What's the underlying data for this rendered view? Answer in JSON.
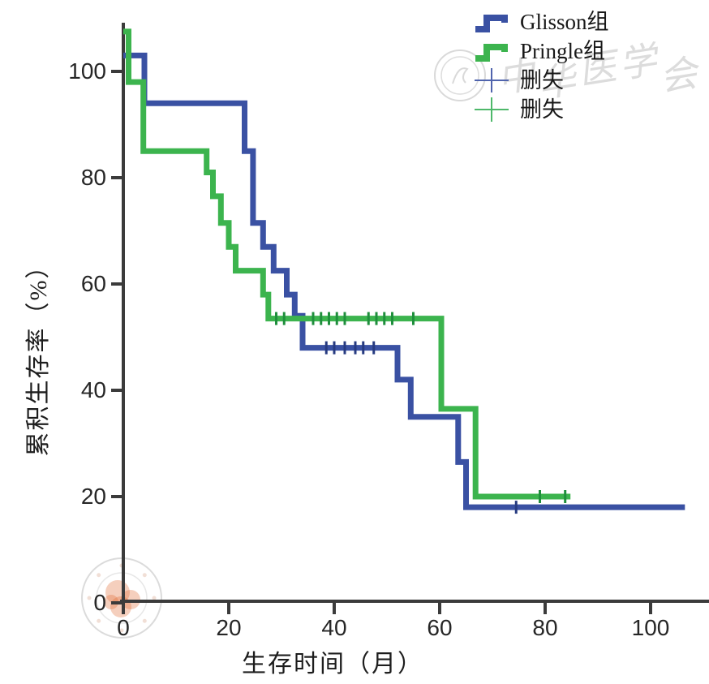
{
  "figure": {
    "background": "#ffffff",
    "axis_color": "#3b3b3b",
    "tick_label_color": "#262626"
  },
  "axes": {
    "x": {
      "label": "生存时间（月）",
      "ticks": [
        0,
        20,
        40,
        60,
        80,
        100
      ]
    },
    "y": {
      "label": "累积生存率（%）",
      "ticks": [
        0,
        20,
        40,
        60,
        80,
        100
      ]
    }
  },
  "legend": {
    "position": "top-right",
    "items": [
      {
        "label": "Glisson组",
        "type": "step-line",
        "color": "#3a51a3"
      },
      {
        "label": "Pringle组",
        "type": "step-line",
        "color": "#3cb44e"
      },
      {
        "label": "删失",
        "type": "censor-plus",
        "color": "#5064ad"
      },
      {
        "label": "删失",
        "type": "censor-plus",
        "color": "#4eb86a"
      }
    ]
  },
  "watermarks": {
    "top_right": {
      "type": "journal-watermark",
      "text": "中华医学会",
      "logo": "double-circle-seal",
      "color": "#909090"
    },
    "bottom_left": {
      "type": "round-seal-stamp",
      "ring_color": "#bdbdbd",
      "center_color": "#e06a33"
    }
  },
  "chart_data": {
    "type": "line",
    "subtype": "kaplan-meier-step",
    "title": "",
    "xlabel": "生存时间（月）",
    "ylabel": "累积生存率（%）",
    "xlim": [
      0,
      111
    ],
    "ylim": [
      0,
      109
    ],
    "grid": false,
    "legend_position": "top-right",
    "series": [
      {
        "name": "Glisson组",
        "color": "#3a51a3",
        "censor_color": "#263a80",
        "steps": [
          [
            0,
            103
          ],
          [
            4,
            103
          ],
          [
            4,
            94
          ],
          [
            23,
            94
          ],
          [
            23,
            85
          ],
          [
            24.6,
            85
          ],
          [
            24.6,
            71.5
          ],
          [
            26.5,
            71.5
          ],
          [
            26.5,
            67
          ],
          [
            28.5,
            67
          ],
          [
            28.5,
            62.5
          ],
          [
            31,
            62.5
          ],
          [
            31,
            58
          ],
          [
            32.5,
            58
          ],
          [
            32.5,
            54
          ],
          [
            34,
            54
          ],
          [
            34,
            48
          ],
          [
            52,
            48
          ],
          [
            52,
            42
          ],
          [
            54.5,
            42
          ],
          [
            54.5,
            35
          ],
          [
            63.5,
            35
          ],
          [
            63.5,
            26.5
          ],
          [
            65,
            26.5
          ],
          [
            65,
            18
          ],
          [
            106.5,
            18
          ]
        ],
        "censors": [
          [
            38.5,
            48
          ],
          [
            40,
            48
          ],
          [
            42,
            48
          ],
          [
            44,
            48
          ],
          [
            45.5,
            48
          ],
          [
            47.5,
            48
          ],
          [
            74.5,
            18
          ]
        ]
      },
      {
        "name": "Pringle组",
        "color": "#3cb44e",
        "censor_color": "#1f8f3c",
        "steps": [
          [
            0,
            107.5
          ],
          [
            1,
            107.5
          ],
          [
            1,
            98
          ],
          [
            3.8,
            98
          ],
          [
            3.8,
            85
          ],
          [
            15.8,
            85
          ],
          [
            15.8,
            81
          ],
          [
            17,
            81
          ],
          [
            17,
            76.5
          ],
          [
            18.5,
            76.5
          ],
          [
            18.5,
            71.5
          ],
          [
            20,
            71.5
          ],
          [
            20,
            67
          ],
          [
            21.3,
            67
          ],
          [
            21.3,
            62.5
          ],
          [
            26.5,
            62.5
          ],
          [
            26.5,
            58
          ],
          [
            27.5,
            58
          ],
          [
            27.5,
            53.5
          ],
          [
            60.3,
            53.5
          ],
          [
            60.3,
            36.5
          ],
          [
            66.8,
            36.5
          ],
          [
            66.8,
            20
          ],
          [
            84.8,
            20
          ]
        ],
        "censors": [
          [
            29,
            53.5
          ],
          [
            30.5,
            53.5
          ],
          [
            36,
            53.5
          ],
          [
            37.5,
            53.5
          ],
          [
            39,
            53.5
          ],
          [
            40.5,
            53.5
          ],
          [
            42,
            53.5
          ],
          [
            46.5,
            53.5
          ],
          [
            48,
            53.5
          ],
          [
            49.5,
            53.5
          ],
          [
            51,
            53.5
          ],
          [
            55,
            53.5
          ],
          [
            79,
            20
          ],
          [
            83.8,
            20
          ]
        ]
      }
    ]
  }
}
